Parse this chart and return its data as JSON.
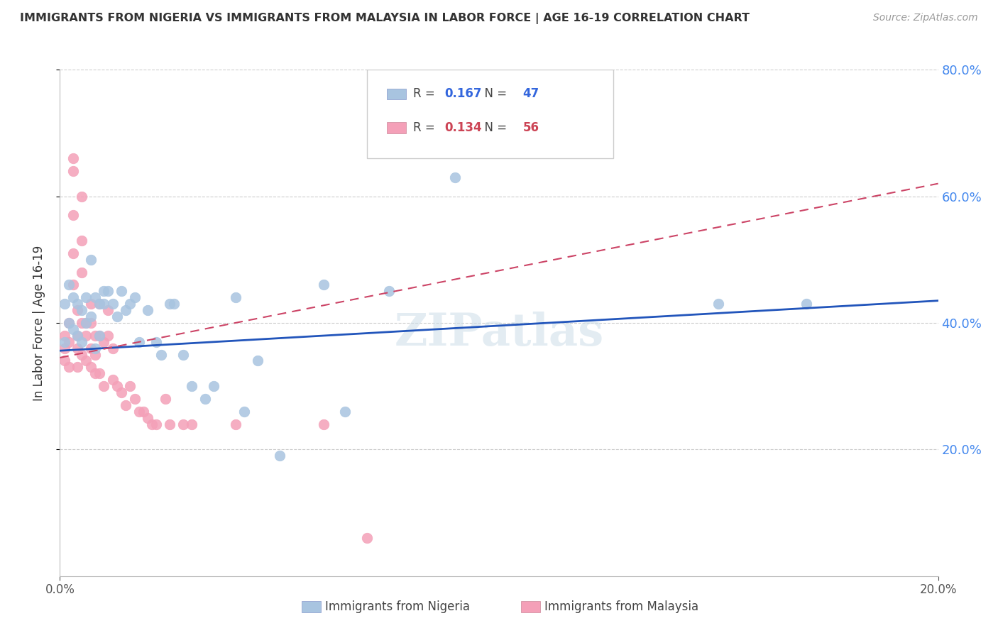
{
  "title": "IMMIGRANTS FROM NIGERIA VS IMMIGRANTS FROM MALAYSIA IN LABOR FORCE | AGE 16-19 CORRELATION CHART",
  "source": "Source: ZipAtlas.com",
  "ylabel": "In Labor Force | Age 16-19",
  "xlim": [
    0.0,
    0.2
  ],
  "ylim": [
    0.0,
    0.8
  ],
  "ytick_labels": [
    "20.0%",
    "40.0%",
    "60.0%",
    "80.0%"
  ],
  "ytick_values": [
    0.2,
    0.4,
    0.6,
    0.8
  ],
  "xtick_labels": [
    "0.0%",
    "20.0%"
  ],
  "xtick_values": [
    0.0,
    0.2
  ],
  "nigeria_R": 0.167,
  "nigeria_N": 47,
  "malaysia_R": 0.134,
  "malaysia_N": 56,
  "nigeria_color": "#a8c4e0",
  "malaysia_color": "#f4a0b8",
  "nigeria_line_color": "#2255bb",
  "malaysia_line_color": "#cc4466",
  "background_color": "#ffffff",
  "grid_color": "#cccccc",
  "nigeria_x": [
    0.001,
    0.001,
    0.002,
    0.002,
    0.003,
    0.003,
    0.004,
    0.004,
    0.005,
    0.005,
    0.006,
    0.006,
    0.007,
    0.007,
    0.008,
    0.008,
    0.009,
    0.009,
    0.01,
    0.01,
    0.011,
    0.012,
    0.013,
    0.014,
    0.015,
    0.016,
    0.017,
    0.018,
    0.02,
    0.022,
    0.023,
    0.025,
    0.026,
    0.028,
    0.03,
    0.033,
    0.035,
    0.04,
    0.042,
    0.045,
    0.05,
    0.06,
    0.065,
    0.075,
    0.09,
    0.15,
    0.17
  ],
  "nigeria_y": [
    0.37,
    0.43,
    0.4,
    0.46,
    0.39,
    0.44,
    0.43,
    0.38,
    0.42,
    0.37,
    0.44,
    0.4,
    0.5,
    0.41,
    0.44,
    0.36,
    0.43,
    0.38,
    0.45,
    0.43,
    0.45,
    0.43,
    0.41,
    0.45,
    0.42,
    0.43,
    0.44,
    0.37,
    0.42,
    0.37,
    0.35,
    0.43,
    0.43,
    0.35,
    0.3,
    0.28,
    0.3,
    0.44,
    0.26,
    0.34,
    0.19,
    0.46,
    0.26,
    0.45,
    0.63,
    0.43,
    0.43
  ],
  "malaysia_x": [
    0.001,
    0.001,
    0.001,
    0.002,
    0.002,
    0.002,
    0.003,
    0.003,
    0.003,
    0.003,
    0.003,
    0.004,
    0.004,
    0.004,
    0.004,
    0.005,
    0.005,
    0.005,
    0.005,
    0.005,
    0.006,
    0.006,
    0.006,
    0.007,
    0.007,
    0.007,
    0.007,
    0.008,
    0.008,
    0.008,
    0.009,
    0.009,
    0.009,
    0.01,
    0.01,
    0.011,
    0.011,
    0.012,
    0.012,
    0.013,
    0.014,
    0.015,
    0.016,
    0.017,
    0.018,
    0.019,
    0.02,
    0.021,
    0.022,
    0.024,
    0.025,
    0.028,
    0.03,
    0.04,
    0.06,
    0.07
  ],
  "malaysia_y": [
    0.38,
    0.36,
    0.34,
    0.4,
    0.37,
    0.33,
    0.66,
    0.64,
    0.57,
    0.51,
    0.46,
    0.42,
    0.38,
    0.36,
    0.33,
    0.6,
    0.53,
    0.48,
    0.4,
    0.35,
    0.4,
    0.38,
    0.34,
    0.43,
    0.4,
    0.36,
    0.33,
    0.38,
    0.35,
    0.32,
    0.43,
    0.38,
    0.32,
    0.37,
    0.3,
    0.42,
    0.38,
    0.36,
    0.31,
    0.3,
    0.29,
    0.27,
    0.3,
    0.28,
    0.26,
    0.26,
    0.25,
    0.24,
    0.24,
    0.28,
    0.24,
    0.24,
    0.24,
    0.24,
    0.24,
    0.06
  ],
  "nigeria_trend_x": [
    0.0,
    0.2
  ],
  "nigeria_trend_y": [
    0.356,
    0.435
  ],
  "malaysia_trend_x": [
    0.0,
    0.2
  ],
  "malaysia_trend_y": [
    0.345,
    0.62
  ]
}
